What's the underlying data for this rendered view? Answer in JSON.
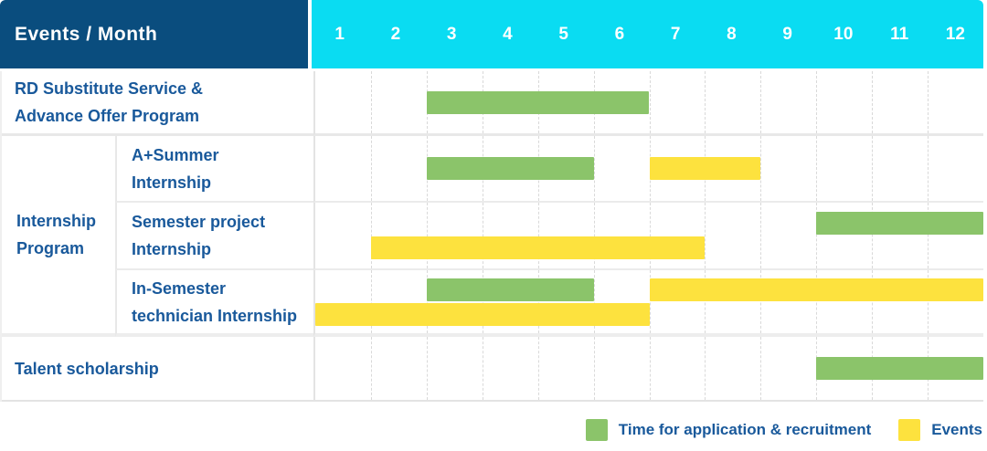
{
  "header": {
    "title": "Events / Month",
    "months": [
      "1",
      "2",
      "3",
      "4",
      "5",
      "6",
      "7",
      "8",
      "9",
      "10",
      "11",
      "12"
    ]
  },
  "colors": {
    "navy": "#0A4D7E",
    "cyan": "#0ADCF2",
    "blue": "#19599B",
    "green": "#8BC46A",
    "yellow": "#FDE23E"
  },
  "groups": {
    "internship": {
      "label": "Internship Program",
      "label_lines": [
        "Internship",
        "Program"
      ]
    }
  },
  "legend": {
    "items": [
      {
        "series": "application",
        "label": "Time for application & recruitment"
      },
      {
        "series": "events",
        "label": "Events"
      }
    ]
  },
  "chart_data": {
    "type": "gantt",
    "x_axis": {
      "label": "Month",
      "ticks": [
        1,
        2,
        3,
        4,
        5,
        6,
        7,
        8,
        9,
        10,
        11,
        12
      ],
      "range": [
        1,
        12
      ]
    },
    "series": {
      "application": {
        "label": "Time for application & recruitment",
        "color": "#8BC46A"
      },
      "events": {
        "label": "Events",
        "color": "#FDE23E"
      }
    },
    "rows": [
      {
        "group": null,
        "label": "RD Substitute Service & Advance Offer Program",
        "label_lines": [
          "RD Substitute Service &",
          "Advance Offer Program"
        ],
        "bars": [
          {
            "series": "application",
            "start": 3,
            "end": 6,
            "line": 1
          }
        ]
      },
      {
        "group": "Internship Program",
        "label": "A+Summer Internship",
        "label_lines": [
          "A+Summer",
          "Internship"
        ],
        "bars": [
          {
            "series": "application",
            "start": 3,
            "end": 5,
            "line": 1
          },
          {
            "series": "events",
            "start": 7,
            "end": 8,
            "line": 1
          }
        ]
      },
      {
        "group": "Internship Program",
        "label": "Semester project Internship",
        "label_lines": [
          "Semester project",
          "Internship"
        ],
        "bars": [
          {
            "series": "application",
            "start": 10,
            "end": 12,
            "line": 1
          },
          {
            "series": "events",
            "start": 2,
            "end": 7,
            "line": 2
          }
        ]
      },
      {
        "group": "Internship Program",
        "label": "In-Semester technician Internship",
        "label_lines": [
          "In-Semester",
          "technician Internship"
        ],
        "bars": [
          {
            "series": "application",
            "start": 3,
            "end": 5,
            "line": 1
          },
          {
            "series": "events",
            "start": 7,
            "end": 12,
            "line": 1
          },
          {
            "series": "events",
            "start": 1,
            "end": 6,
            "line": 2
          }
        ]
      },
      {
        "group": null,
        "label": "Talent scholarship",
        "label_lines": [
          "Talent scholarship"
        ],
        "bars": [
          {
            "series": "application",
            "start": 10,
            "end": 12,
            "line": 1
          }
        ]
      }
    ]
  }
}
